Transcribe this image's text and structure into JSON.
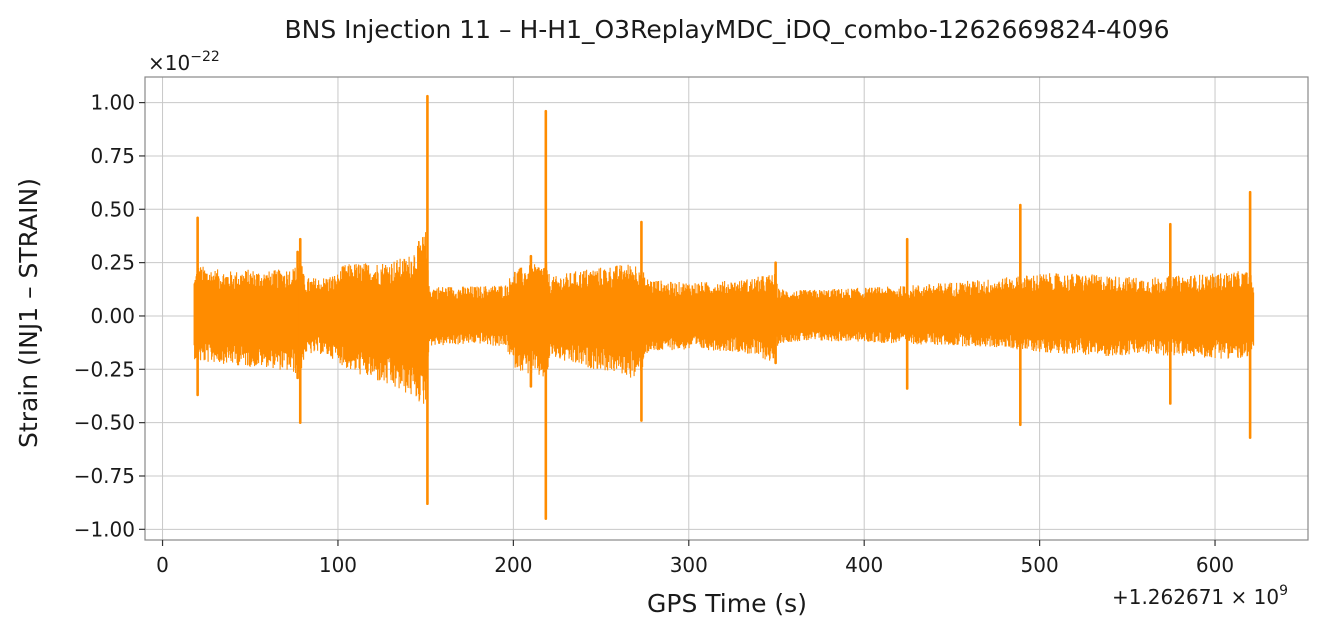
{
  "chart_data": {
    "type": "line",
    "title": "BNS Injection 11 – H-H1_O3ReplayMDC_iDQ_combo-1262669824-4096",
    "xlabel": "GPS Time (s)",
    "ylabel": "Strain (INJ1 – STRAIN)",
    "y_multiplier_label": "×10",
    "y_multiplier_exp": "−22",
    "x_offset_label": "+1.262671 × 10",
    "x_offset_exp": "9",
    "x_offset": 1262671000,
    "y_scale": 1e-22,
    "xlim": [
      -10,
      653
    ],
    "ylim": [
      -1.05,
      1.12
    ],
    "xticks": [
      0,
      100,
      200,
      300,
      400,
      500,
      600
    ],
    "xtick_labels": [
      "0",
      "100",
      "200",
      "300",
      "400",
      "500",
      "600"
    ],
    "yticks": [
      -1.0,
      -0.75,
      -0.5,
      -0.25,
      0.0,
      0.25,
      0.5,
      0.75,
      1.0
    ],
    "ytick_labels": [
      "−1.00",
      "−0.75",
      "−0.50",
      "−0.25",
      "0.00",
      "0.25",
      "0.50",
      "0.75",
      "1.00"
    ],
    "grid": true,
    "series": [
      {
        "color": "#ff8c00",
        "x_start": 18,
        "x_end": 622,
        "noise_envelope": {
          "x": [
            18,
            20,
            30,
            40,
            50,
            60,
            75,
            79,
            81,
            90,
            100,
            103,
            110,
            120,
            130,
            140,
            150,
            152,
            160,
            180,
            196,
            200,
            210,
            219,
            221,
            230,
            240,
            260,
            270,
            273,
            275,
            290,
            310,
            330,
            349,
            351,
            360,
            390,
            420,
            450,
            480,
            500,
            520,
            540,
            560,
            580,
            600,
            612,
            620,
            622
          ],
          "upper": [
            0.18,
            0.24,
            0.22,
            0.21,
            0.22,
            0.21,
            0.23,
            0.26,
            0.18,
            0.18,
            0.2,
            0.24,
            0.25,
            0.25,
            0.26,
            0.28,
            0.4,
            0.14,
            0.14,
            0.14,
            0.15,
            0.22,
            0.24,
            0.25,
            0.18,
            0.2,
            0.22,
            0.24,
            0.25,
            0.25,
            0.18,
            0.16,
            0.16,
            0.17,
            0.2,
            0.13,
            0.12,
            0.13,
            0.14,
            0.16,
            0.18,
            0.2,
            0.2,
            0.19,
            0.18,
            0.19,
            0.2,
            0.21,
            0.21,
            0.15
          ],
          "lower": [
            -0.2,
            -0.22,
            -0.22,
            -0.23,
            -0.24,
            -0.24,
            -0.27,
            -0.28,
            -0.18,
            -0.18,
            -0.21,
            -0.24,
            -0.27,
            -0.3,
            -0.34,
            -0.37,
            -0.43,
            -0.14,
            -0.14,
            -0.13,
            -0.15,
            -0.24,
            -0.28,
            -0.3,
            -0.19,
            -0.22,
            -0.24,
            -0.27,
            -0.3,
            -0.28,
            -0.18,
            -0.16,
            -0.16,
            -0.17,
            -0.22,
            -0.13,
            -0.12,
            -0.12,
            -0.13,
            -0.14,
            -0.15,
            -0.17,
            -0.18,
            -0.19,
            -0.18,
            -0.19,
            -0.2,
            -0.2,
            -0.22,
            -0.14
          ]
        },
        "spikes": [
          {
            "x": 20,
            "max": 0.46,
            "min": -0.37
          },
          {
            "x": 77,
            "max": 0.3,
            "min": -0.29
          },
          {
            "x": 78.5,
            "max": 0.36,
            "min": -0.5
          },
          {
            "x": 151,
            "max": 1.03,
            "min": -0.88
          },
          {
            "x": 218.5,
            "max": 0.96,
            "min": -0.95
          },
          {
            "x": 210,
            "max": 0.28,
            "min": -0.33
          },
          {
            "x": 273,
            "max": 0.44,
            "min": -0.49
          },
          {
            "x": 349.5,
            "max": 0.25,
            "min": -0.22
          },
          {
            "x": 424.5,
            "max": 0.36,
            "min": -0.34
          },
          {
            "x": 489,
            "max": 0.52,
            "min": -0.51
          },
          {
            "x": 574.5,
            "max": 0.43,
            "min": -0.41
          },
          {
            "x": 620,
            "max": 0.58,
            "min": -0.57
          }
        ]
      }
    ]
  }
}
